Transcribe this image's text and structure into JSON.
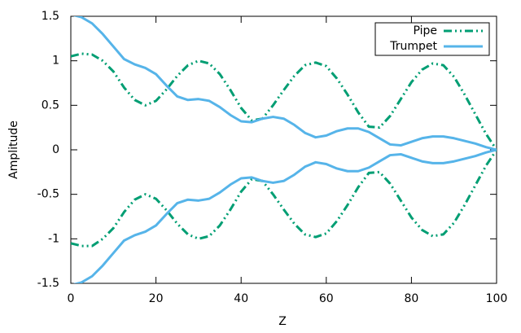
{
  "chart_data": {
    "type": "line",
    "xlabel": "Z",
    "ylabel": "Amplitude",
    "x": [
      0,
      2.5,
      5,
      7.5,
      10,
      12.5,
      15,
      17.5,
      20,
      22.5,
      25,
      27.5,
      30,
      32.5,
      35,
      37.5,
      40,
      42.5,
      45,
      47.5,
      50,
      52.5,
      55,
      57.5,
      60,
      62.5,
      65,
      67.5,
      70,
      72.5,
      75,
      77.5,
      80,
      82.5,
      85,
      87.5,
      90,
      92.5,
      95,
      97.5,
      100
    ],
    "series": [
      {
        "name": "Pipe",
        "color": "#009e73",
        "dash": "10 4 2 4 2 4",
        "values": [
          1.05,
          1.08,
          1.07,
          1.0,
          0.88,
          0.7,
          0.56,
          0.5,
          0.55,
          0.68,
          0.83,
          0.95,
          1.0,
          0.97,
          0.85,
          0.67,
          0.47,
          0.33,
          0.35,
          0.5,
          0.67,
          0.83,
          0.95,
          0.98,
          0.94,
          0.8,
          0.62,
          0.42,
          0.26,
          0.25,
          0.38,
          0.57,
          0.76,
          0.9,
          0.97,
          0.95,
          0.82,
          0.62,
          0.4,
          0.18,
          0
        ],
        "lower_values": [
          -1.05,
          -1.08,
          -1.08,
          -1.0,
          -0.88,
          -0.7,
          -0.56,
          -0.5,
          -0.55,
          -0.68,
          -0.83,
          -0.95,
          -1.0,
          -0.97,
          -0.85,
          -0.67,
          -0.47,
          -0.33,
          -0.35,
          -0.5,
          -0.67,
          -0.83,
          -0.95,
          -0.98,
          -0.94,
          -0.8,
          -0.62,
          -0.42,
          -0.26,
          -0.25,
          -0.38,
          -0.57,
          -0.76,
          -0.9,
          -0.97,
          -0.95,
          -0.82,
          -0.62,
          -0.4,
          -0.18,
          0
        ]
      },
      {
        "name": "Trumpet",
        "color": "#56b4e9",
        "dash": "none",
        "values": [
          1.52,
          1.49,
          1.42,
          1.3,
          1.16,
          1.02,
          0.96,
          0.92,
          0.85,
          0.72,
          0.6,
          0.56,
          0.57,
          0.55,
          0.48,
          0.39,
          0.32,
          0.31,
          0.35,
          0.37,
          0.35,
          0.28,
          0.19,
          0.14,
          0.16,
          0.21,
          0.24,
          0.24,
          0.2,
          0.13,
          0.06,
          0.05,
          0.09,
          0.13,
          0.15,
          0.15,
          0.13,
          0.1,
          0.07,
          0.03,
          0
        ],
        "lower_values": [
          -1.52,
          -1.49,
          -1.42,
          -1.3,
          -1.16,
          -1.02,
          -0.96,
          -0.92,
          -0.85,
          -0.72,
          -0.6,
          -0.56,
          -0.57,
          -0.55,
          -0.48,
          -0.39,
          -0.32,
          -0.31,
          -0.35,
          -0.37,
          -0.35,
          -0.28,
          -0.19,
          -0.14,
          -0.16,
          -0.21,
          -0.24,
          -0.24,
          -0.2,
          -0.13,
          -0.06,
          -0.05,
          -0.09,
          -0.13,
          -0.15,
          -0.15,
          -0.13,
          -0.1,
          -0.07,
          -0.03,
          0
        ]
      }
    ],
    "xlim": [
      0,
      100
    ],
    "xticks": [
      0,
      20,
      40,
      60,
      80,
      100
    ],
    "ylim": [
      -1.5,
      1.5
    ],
    "yticks": [
      -1.5,
      -1,
      -0.5,
      0,
      0.5,
      1,
      1.5
    ],
    "grid": false,
    "legend": "top right"
  }
}
